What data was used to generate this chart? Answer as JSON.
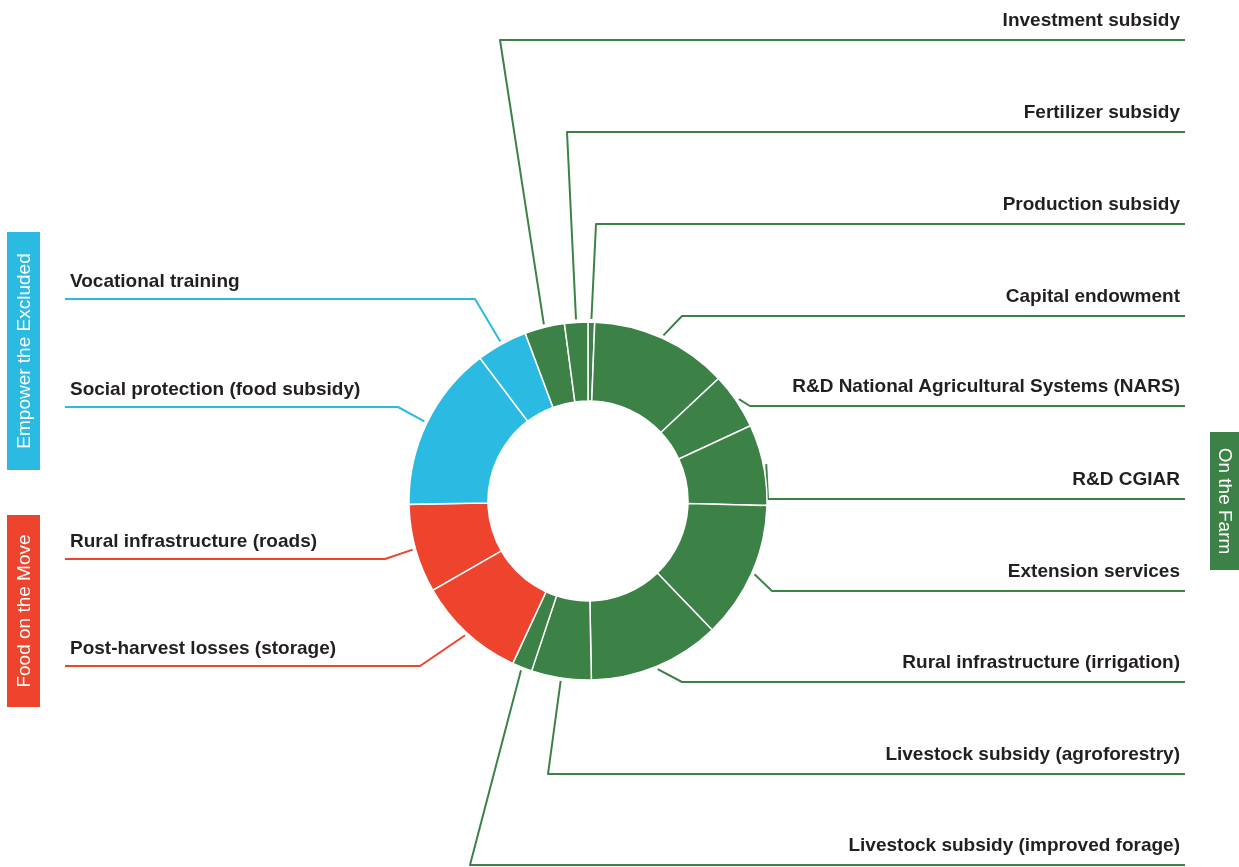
{
  "chart_data": {
    "type": "donut",
    "categories": [
      "Production subsidy",
      "Capital endowment",
      "R&D National Agricultural Systems (NARS)",
      "R&D CGIAR",
      "Extension services",
      "Rural infrastructure (irrigation)",
      "Livestock subsidy (agroforestry)",
      "Livestock subsidy (improved forage)",
      "Post-harvest losses (storage)",
      "Rural infrastructure (roads)",
      "Social protection (food subsidy)",
      "Vocational training",
      "Investment subsidy",
      "Fertilizer subsidy"
    ],
    "values": [
      0.6,
      12.4,
      5.1,
      7.3,
      12.4,
      11.9,
      5.4,
      1.8,
      9.8,
      8.0,
      15.0,
      4.6,
      3.6,
      2.1
    ],
    "colors": [
      "#3c8247",
      "#3c8247",
      "#3c8247",
      "#3c8247",
      "#3c8247",
      "#3c8247",
      "#3c8247",
      "#3c8247",
      "#ee432c",
      "#ee432c",
      "#2bbbe2",
      "#2bbbe2",
      "#3c8247",
      "#3c8247"
    ],
    "annotations": [
      "Empower the Excluded",
      "Food on the Move",
      "On the Farm"
    ]
  }
}
